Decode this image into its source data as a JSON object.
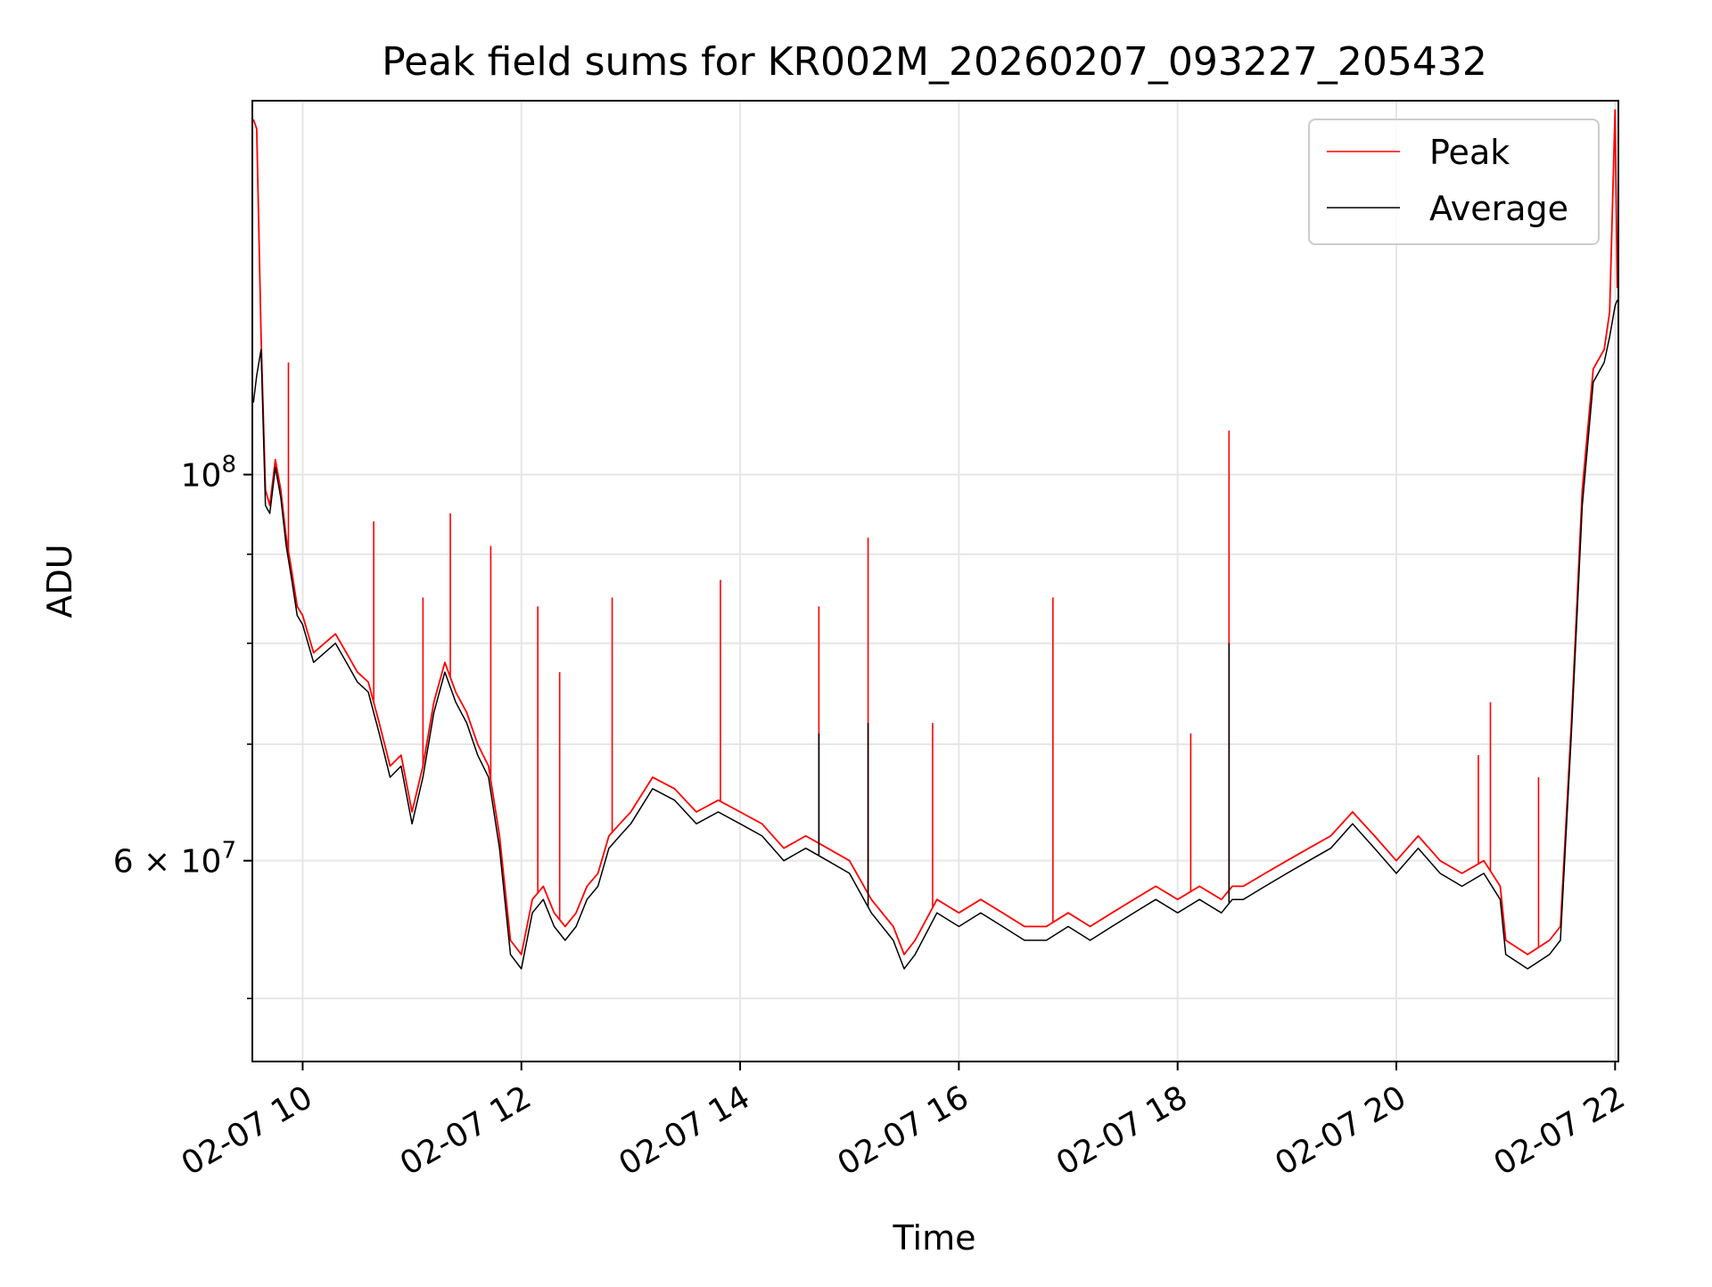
{
  "chart_data": {
    "type": "line",
    "title": "Peak field sums for KR002M_20260207_093227_205432",
    "xlabel": "Time",
    "ylabel": "ADU",
    "y_scale": "log",
    "ylim": [
      46000000,
      164000000
    ],
    "xlim_hours": [
      9.54,
      22.03
    ],
    "x_ticks": [
      {
        "value": 10,
        "label": "02-07 10"
      },
      {
        "value": 12,
        "label": "02-07 12"
      },
      {
        "value": 14,
        "label": "02-07 14"
      },
      {
        "value": 16,
        "label": "02-07 16"
      },
      {
        "value": 18,
        "label": "02-07 18"
      },
      {
        "value": 20,
        "label": "02-07 20"
      },
      {
        "value": 22,
        "label": "02-07 22"
      }
    ],
    "y_major_ticks": [
      {
        "value": 100000000,
        "base": "10",
        "exp": "8"
      },
      {
        "value": 60000000,
        "base": "6 × 10",
        "exp": "7"
      }
    ],
    "y_minor_ticks": [
      50000000,
      70000000,
      80000000,
      90000000
    ],
    "grid": true,
    "legend": {
      "position": "upper-right",
      "entries": [
        "Peak",
        "Average"
      ]
    },
    "series": [
      {
        "name": "Peak",
        "color": "#ff0000",
        "x": [
          9.55,
          9.58,
          9.62,
          9.66,
          9.7,
          9.75,
          9.8,
          9.85,
          9.9,
          9.95,
          10.0,
          10.1,
          10.2,
          10.3,
          10.4,
          10.5,
          10.6,
          10.7,
          10.8,
          10.9,
          11.0,
          11.1,
          11.2,
          11.3,
          11.4,
          11.5,
          11.6,
          11.7,
          11.8,
          11.9,
          12.0,
          12.1,
          12.2,
          12.3,
          12.4,
          12.5,
          12.6,
          12.7,
          12.8,
          12.9,
          13.0,
          13.2,
          13.4,
          13.6,
          13.8,
          14.0,
          14.2,
          14.4,
          14.6,
          14.8,
          15.0,
          15.2,
          15.4,
          15.5,
          15.6,
          15.8,
          16.0,
          16.2,
          16.4,
          16.6,
          16.8,
          17.0,
          17.2,
          17.4,
          17.6,
          17.8,
          18.0,
          18.2,
          18.4,
          18.5,
          18.6,
          18.8,
          19.0,
          19.2,
          19.4,
          19.6,
          19.8,
          20.0,
          20.2,
          20.4,
          20.6,
          20.8,
          20.95,
          21.0,
          21.2,
          21.4,
          21.5,
          21.6,
          21.7,
          21.8,
          21.9,
          21.95,
          22.0,
          22.02
        ],
        "y": [
          160000000,
          158000000,
          120000000,
          98000000,
          96000000,
          102000000,
          98000000,
          92000000,
          88000000,
          84000000,
          83000000,
          79000000,
          80000000,
          81000000,
          79000000,
          77000000,
          76000000,
          72000000,
          68000000,
          69000000,
          64000000,
          68000000,
          74000000,
          78000000,
          75000000,
          73000000,
          70000000,
          68000000,
          62000000,
          54000000,
          53000000,
          57000000,
          58000000,
          56000000,
          55000000,
          56000000,
          58000000,
          59000000,
          62000000,
          63000000,
          64000000,
          67000000,
          66000000,
          64000000,
          65000000,
          64000000,
          63000000,
          61000000,
          62000000,
          61000000,
          60000000,
          57000000,
          55000000,
          53000000,
          54000000,
          57000000,
          56000000,
          57000000,
          56000000,
          55000000,
          55000000,
          56000000,
          55000000,
          56000000,
          57000000,
          58000000,
          57000000,
          58000000,
          57000000,
          58000000,
          58000000,
          59000000,
          60000000,
          61000000,
          62000000,
          64000000,
          62000000,
          60000000,
          62000000,
          60000000,
          59000000,
          60000000,
          58000000,
          54000000,
          53000000,
          54000000,
          55000000,
          72000000,
          98000000,
          115000000,
          118000000,
          124000000,
          162000000,
          128000000
        ],
        "spikes": [
          {
            "x": 9.87,
            "y": 116000000
          },
          {
            "x": 10.65,
            "y": 94000000
          },
          {
            "x": 11.1,
            "y": 85000000
          },
          {
            "x": 11.35,
            "y": 95000000
          },
          {
            "x": 11.72,
            "y": 91000000
          },
          {
            "x": 12.15,
            "y": 84000000
          },
          {
            "x": 12.35,
            "y": 77000000
          },
          {
            "x": 12.83,
            "y": 85000000
          },
          {
            "x": 13.82,
            "y": 87000000
          },
          {
            "x": 14.72,
            "y": 84000000
          },
          {
            "x": 15.17,
            "y": 92000000
          },
          {
            "x": 15.76,
            "y": 72000000
          },
          {
            "x": 16.86,
            "y": 85000000
          },
          {
            "x": 18.12,
            "y": 71000000
          },
          {
            "x": 18.47,
            "y": 106000000
          },
          {
            "x": 20.75,
            "y": 69000000
          },
          {
            "x": 20.86,
            "y": 74000000
          },
          {
            "x": 21.3,
            "y": 67000000
          }
        ]
      },
      {
        "name": "Average",
        "color": "#000000",
        "x": [
          9.55,
          9.58,
          9.62,
          9.66,
          9.7,
          9.75,
          9.8,
          9.85,
          9.9,
          9.95,
          10.0,
          10.1,
          10.2,
          10.3,
          10.4,
          10.5,
          10.6,
          10.7,
          10.8,
          10.9,
          11.0,
          11.1,
          11.2,
          11.3,
          11.4,
          11.5,
          11.6,
          11.7,
          11.8,
          11.9,
          12.0,
          12.1,
          12.2,
          12.3,
          12.4,
          12.5,
          12.6,
          12.7,
          12.8,
          12.9,
          13.0,
          13.2,
          13.4,
          13.6,
          13.8,
          14.0,
          14.2,
          14.4,
          14.6,
          14.8,
          15.0,
          15.2,
          15.4,
          15.5,
          15.6,
          15.8,
          16.0,
          16.2,
          16.4,
          16.6,
          16.8,
          17.0,
          17.2,
          17.4,
          17.6,
          17.8,
          18.0,
          18.2,
          18.4,
          18.5,
          18.6,
          18.8,
          19.0,
          19.2,
          19.4,
          19.6,
          19.8,
          20.0,
          20.2,
          20.4,
          20.6,
          20.8,
          20.95,
          21.0,
          21.2,
          21.4,
          21.5,
          21.6,
          21.7,
          21.8,
          21.9,
          21.95,
          22.0,
          22.02
        ],
        "y": [
          110000000,
          114000000,
          118000000,
          96000000,
          95000000,
          101000000,
          97000000,
          91000000,
          87000000,
          83000000,
          82000000,
          78000000,
          79000000,
          80000000,
          78000000,
          76000000,
          75000000,
          71000000,
          67000000,
          68000000,
          63000000,
          67000000,
          73000000,
          77000000,
          74000000,
          72000000,
          69000000,
          67000000,
          61000000,
          53000000,
          52000000,
          56000000,
          57000000,
          55000000,
          54000000,
          55000000,
          57000000,
          58000000,
          61000000,
          62000000,
          63000000,
          66000000,
          65000000,
          63000000,
          64000000,
          63000000,
          62000000,
          60000000,
          61000000,
          60000000,
          59000000,
          56000000,
          54000000,
          52000000,
          53000000,
          56000000,
          55000000,
          56000000,
          55000000,
          54000000,
          54000000,
          55000000,
          54000000,
          55000000,
          56000000,
          57000000,
          56000000,
          57000000,
          56000000,
          57000000,
          57000000,
          58000000,
          59000000,
          60000000,
          61000000,
          63000000,
          61000000,
          59000000,
          61000000,
          59000000,
          58000000,
          59000000,
          57000000,
          53000000,
          52000000,
          53000000,
          54000000,
          71000000,
          96000000,
          113000000,
          116000000,
          120000000,
          125000000,
          126000000
        ],
        "spikes": [
          {
            "x": 18.47,
            "y": 80000000
          },
          {
            "x": 15.17,
            "y": 72000000
          },
          {
            "x": 14.72,
            "y": 71000000
          }
        ]
      }
    ]
  }
}
